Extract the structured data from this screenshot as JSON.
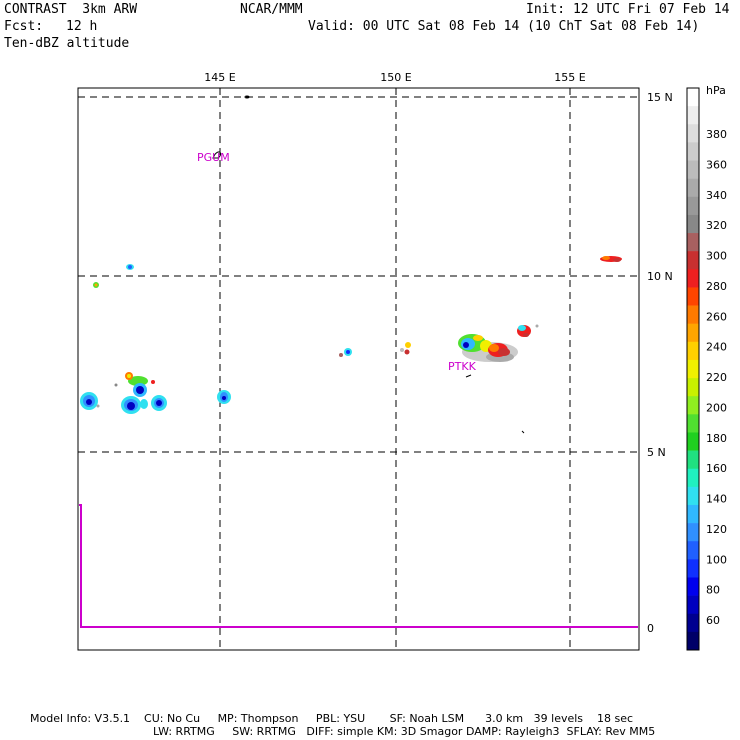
{
  "header": {
    "model": "CONTRAST  3km ARW",
    "center": "NCAR/MMM",
    "init": "Init: 12 UTC Fri 07 Feb 14",
    "fcst_label": "Fcst:",
    "fcst_value": "12 h",
    "valid": "Valid: 00 UTC Sat 08 Feb 14 (10 ChT Sat 08 Feb 14)",
    "field": "Ten-dBZ altitude"
  },
  "map": {
    "lon_labels": [
      "145 E",
      "150 E",
      "155 E"
    ],
    "lat_labels": [
      "15 N",
      "10 N",
      "5 N",
      "0"
    ],
    "stations": [
      "PGUM",
      "PTKK"
    ],
    "line_color": "#cc00cc"
  },
  "colorbar": {
    "unit": "hPa",
    "labels": [
      "380",
      "360",
      "340",
      "320",
      "300",
      "280",
      "260",
      "240",
      "220",
      "200",
      "180",
      "160",
      "140",
      "120",
      "100",
      "80",
      "60"
    ],
    "colors": [
      "#ffffff",
      "#eeeeee",
      "#dddddd",
      "#cccccc",
      "#bbbbbb",
      "#aaaaaa",
      "#999999",
      "#888888",
      "#a86060",
      "#c83030",
      "#ee2020",
      "#ff4500",
      "#ff7a00",
      "#ffa500",
      "#ffd000",
      "#f0f000",
      "#c8f000",
      "#90ee20",
      "#50e030",
      "#20d020",
      "#20e080",
      "#20f0c0",
      "#30e0f0",
      "#30b8ff",
      "#3090ff",
      "#2060ff",
      "#1030ff",
      "#0000ee",
      "#0000c0",
      "#000090",
      "#000068"
    ]
  },
  "footer": {
    "line1": "Model Info: V3.5.1    CU: No Cu     MP: Thompson     PBL: YSU       SF: Noah LSM      3.0 km   39 levels    18 sec",
    "line2": "LW: RRTMG     SW: RRTMG   DIFF: simple KM: 3D Smagor DAMP: Rayleigh3  SFLAY: Rev MM5"
  }
}
